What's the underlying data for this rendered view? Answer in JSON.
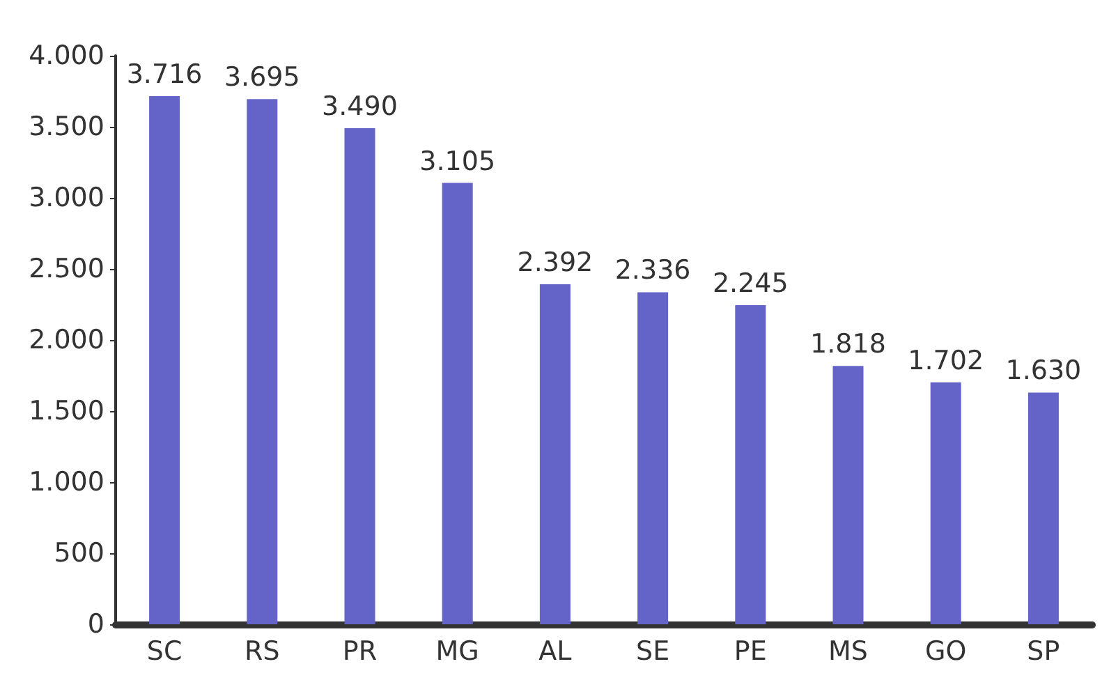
{
  "chart_data": {
    "type": "bar",
    "categories": [
      "SC",
      "RS",
      "PR",
      "MG",
      "AL",
      "SE",
      "PE",
      "MS",
      "GO",
      "SP"
    ],
    "values": [
      3716,
      3695,
      3490,
      3105,
      2392,
      2336,
      2245,
      1818,
      1702,
      1630
    ],
    "value_labels": [
      "3.716",
      "3.695",
      "3.490",
      "3.105",
      "2.392",
      "2.336",
      "2.245",
      "1.818",
      "1.702",
      "1.630"
    ],
    "color": "#6464c8",
    "ylim": [
      0,
      4000
    ],
    "yticks": [
      0,
      {
        "value": 500,
        "label": "500"
      },
      {
        "value": 1000,
        "label": "1.000"
      },
      {
        "value": 1500,
        "label": "1.500"
      },
      {
        "value": 2000,
        "label": "2.000"
      },
      {
        "value": 2500,
        "label": "2.500"
      },
      {
        "value": 3000,
        "label": "3.000"
      },
      {
        "value": 3500,
        "label": "3.500"
      },
      {
        "value": 4000,
        "label": "4.000"
      }
    ],
    "grid": false
  }
}
